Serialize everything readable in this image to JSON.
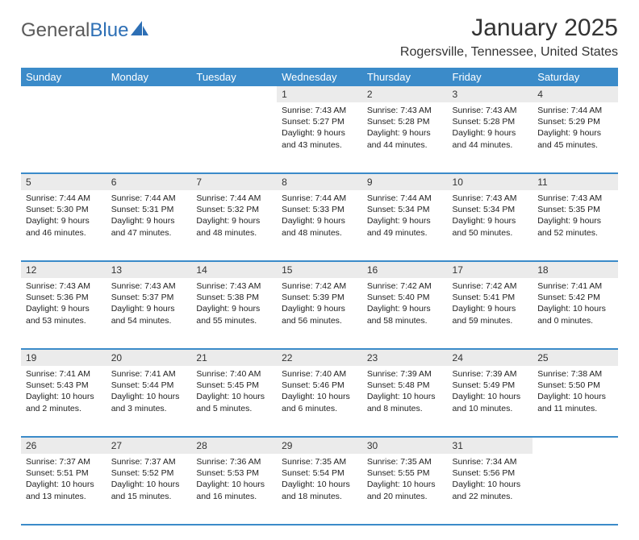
{
  "logo": {
    "text1": "General",
    "text2": "Blue"
  },
  "title": "January 2025",
  "location": "Rogersville, Tennessee, United States",
  "colors": {
    "header_bg": "#3b8bc9",
    "daynum_bg": "#ebebeb",
    "rule": "#3b8bc9"
  },
  "day_headers": [
    "Sunday",
    "Monday",
    "Tuesday",
    "Wednesday",
    "Thursday",
    "Friday",
    "Saturday"
  ],
  "weeks": [
    [
      null,
      null,
      null,
      {
        "n": "1",
        "sr": "7:43 AM",
        "ss": "5:27 PM",
        "dl": "9 hours and 43 minutes."
      },
      {
        "n": "2",
        "sr": "7:43 AM",
        "ss": "5:28 PM",
        "dl": "9 hours and 44 minutes."
      },
      {
        "n": "3",
        "sr": "7:43 AM",
        "ss": "5:28 PM",
        "dl": "9 hours and 44 minutes."
      },
      {
        "n": "4",
        "sr": "7:44 AM",
        "ss": "5:29 PM",
        "dl": "9 hours and 45 minutes."
      }
    ],
    [
      {
        "n": "5",
        "sr": "7:44 AM",
        "ss": "5:30 PM",
        "dl": "9 hours and 46 minutes."
      },
      {
        "n": "6",
        "sr": "7:44 AM",
        "ss": "5:31 PM",
        "dl": "9 hours and 47 minutes."
      },
      {
        "n": "7",
        "sr": "7:44 AM",
        "ss": "5:32 PM",
        "dl": "9 hours and 48 minutes."
      },
      {
        "n": "8",
        "sr": "7:44 AM",
        "ss": "5:33 PM",
        "dl": "9 hours and 48 minutes."
      },
      {
        "n": "9",
        "sr": "7:44 AM",
        "ss": "5:34 PM",
        "dl": "9 hours and 49 minutes."
      },
      {
        "n": "10",
        "sr": "7:43 AM",
        "ss": "5:34 PM",
        "dl": "9 hours and 50 minutes."
      },
      {
        "n": "11",
        "sr": "7:43 AM",
        "ss": "5:35 PM",
        "dl": "9 hours and 52 minutes."
      }
    ],
    [
      {
        "n": "12",
        "sr": "7:43 AM",
        "ss": "5:36 PM",
        "dl": "9 hours and 53 minutes."
      },
      {
        "n": "13",
        "sr": "7:43 AM",
        "ss": "5:37 PM",
        "dl": "9 hours and 54 minutes."
      },
      {
        "n": "14",
        "sr": "7:43 AM",
        "ss": "5:38 PM",
        "dl": "9 hours and 55 minutes."
      },
      {
        "n": "15",
        "sr": "7:42 AM",
        "ss": "5:39 PM",
        "dl": "9 hours and 56 minutes."
      },
      {
        "n": "16",
        "sr": "7:42 AM",
        "ss": "5:40 PM",
        "dl": "9 hours and 58 minutes."
      },
      {
        "n": "17",
        "sr": "7:42 AM",
        "ss": "5:41 PM",
        "dl": "9 hours and 59 minutes."
      },
      {
        "n": "18",
        "sr": "7:41 AM",
        "ss": "5:42 PM",
        "dl": "10 hours and 0 minutes."
      }
    ],
    [
      {
        "n": "19",
        "sr": "7:41 AM",
        "ss": "5:43 PM",
        "dl": "10 hours and 2 minutes."
      },
      {
        "n": "20",
        "sr": "7:41 AM",
        "ss": "5:44 PM",
        "dl": "10 hours and 3 minutes."
      },
      {
        "n": "21",
        "sr": "7:40 AM",
        "ss": "5:45 PM",
        "dl": "10 hours and 5 minutes."
      },
      {
        "n": "22",
        "sr": "7:40 AM",
        "ss": "5:46 PM",
        "dl": "10 hours and 6 minutes."
      },
      {
        "n": "23",
        "sr": "7:39 AM",
        "ss": "5:48 PM",
        "dl": "10 hours and 8 minutes."
      },
      {
        "n": "24",
        "sr": "7:39 AM",
        "ss": "5:49 PM",
        "dl": "10 hours and 10 minutes."
      },
      {
        "n": "25",
        "sr": "7:38 AM",
        "ss": "5:50 PM",
        "dl": "10 hours and 11 minutes."
      }
    ],
    [
      {
        "n": "26",
        "sr": "7:37 AM",
        "ss": "5:51 PM",
        "dl": "10 hours and 13 minutes."
      },
      {
        "n": "27",
        "sr": "7:37 AM",
        "ss": "5:52 PM",
        "dl": "10 hours and 15 minutes."
      },
      {
        "n": "28",
        "sr": "7:36 AM",
        "ss": "5:53 PM",
        "dl": "10 hours and 16 minutes."
      },
      {
        "n": "29",
        "sr": "7:35 AM",
        "ss": "5:54 PM",
        "dl": "10 hours and 18 minutes."
      },
      {
        "n": "30",
        "sr": "7:35 AM",
        "ss": "5:55 PM",
        "dl": "10 hours and 20 minutes."
      },
      {
        "n": "31",
        "sr": "7:34 AM",
        "ss": "5:56 PM",
        "dl": "10 hours and 22 minutes."
      },
      null
    ]
  ]
}
